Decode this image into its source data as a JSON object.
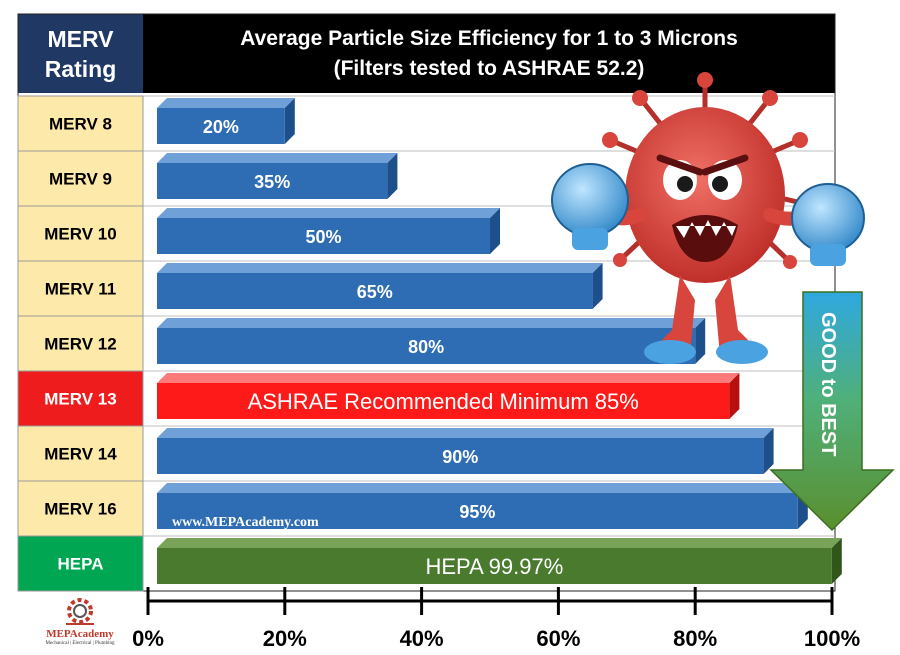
{
  "header": {
    "rating_line1": "MERV",
    "rating_line2": "Rating",
    "title_line1": "Average Particle Size Efficiency for 1 to 3 Microns",
    "title_line2": "(Filters tested to ASHRAE 52.2)"
  },
  "watermark": "www.MEPAcademy.com",
  "arrow_label": "GOOD to BEST",
  "logo": {
    "name": "MEPAcademy",
    "tagline": "Mechanical | Electrical | Plumbing"
  },
  "colors": {
    "header_blue": "#1f3864",
    "header_black": "#000000",
    "row_label_bg": "#fde9a9",
    "merv13_label_bg": "#ee1c1c",
    "hepa_label_bg": "#00a651",
    "bar_blue": "#2e6db4",
    "bar_red": "#ff1a1a",
    "bar_green": "#4a7a2e",
    "arrow_green": "#5a8f2e"
  },
  "chart_data": {
    "type": "bar",
    "orientation": "horizontal",
    "title": "Average Particle Size Efficiency for 1 to 3 Microns",
    "subtitle": "(Filters tested to ASHRAE 52.2)",
    "categories": [
      "MERV 8",
      "MERV 9",
      "MERV 10",
      "MERV 11",
      "MERV 12",
      "MERV 13",
      "MERV 14",
      "MERV 16",
      "HEPA"
    ],
    "values": [
      20,
      35,
      50,
      65,
      80,
      85,
      90,
      95,
      99.97
    ],
    "bar_labels": [
      "20%",
      "35%",
      "50%",
      "65%",
      "80%",
      "ASHRAE Recommended Minimum 85%",
      "90%",
      "95%",
      "HEPA 99.97%"
    ],
    "bar_colors": [
      "blue",
      "blue",
      "blue",
      "blue",
      "blue",
      "red",
      "blue",
      "blue",
      "green"
    ],
    "label_colors": [
      "yellow",
      "yellow",
      "yellow",
      "yellow",
      "yellow",
      "red",
      "yellow",
      "yellow",
      "green"
    ],
    "xlim": [
      0,
      100
    ],
    "xticks": [
      "0%",
      "20%",
      "40%",
      "60%",
      "80%",
      "100%"
    ],
    "grid": false
  }
}
